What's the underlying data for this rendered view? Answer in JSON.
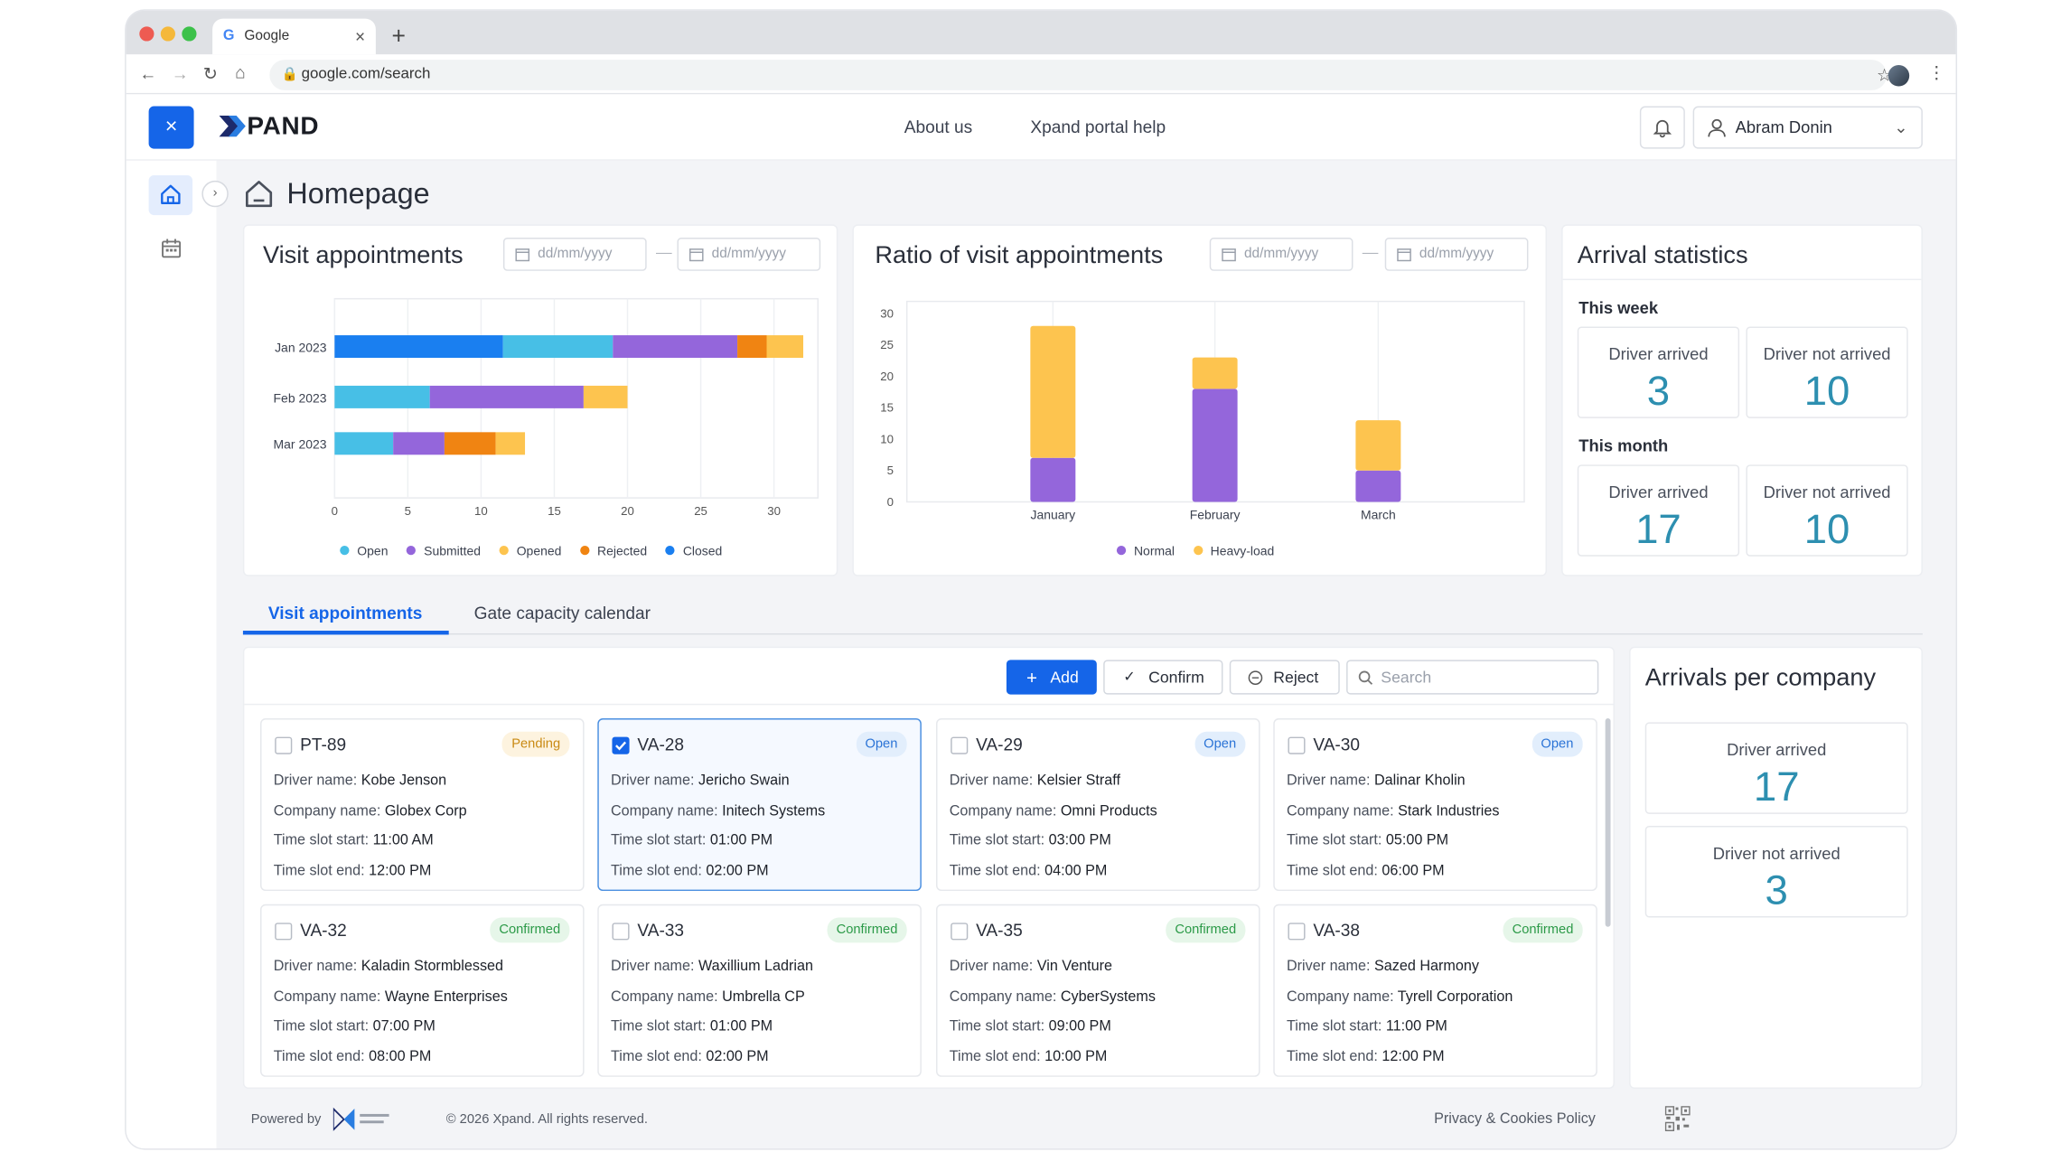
{
  "browser": {
    "tab_title": "Google",
    "tab_close": "×",
    "new_tab": "+",
    "url": "google.com/search"
  },
  "header": {
    "close_label": "×",
    "logo_text": "PAND",
    "menu": [
      "About us",
      "Xpand portal help"
    ],
    "user_name": "Abram Donin"
  },
  "page": {
    "title": "Homepage"
  },
  "visit_chart_card": {
    "title": "Visit appointments",
    "date_placeholder": "dd/mm/yyyy",
    "date_separator": "—"
  },
  "ratio_chart_card": {
    "title": "Ratio of visit appointments",
    "date_placeholder": "dd/mm/yyyy",
    "date_separator": "—"
  },
  "chart_data": [
    {
      "type": "bar",
      "orientation": "horizontal",
      "stacked": true,
      "categories": [
        "Jan 2023",
        "Feb 2023",
        "Mar 2023"
      ],
      "series": [
        {
          "name": "Closed",
          "color": "#1a7ff0",
          "values": [
            11.5,
            0,
            0
          ]
        },
        {
          "name": "Open",
          "color": "#47bfe6",
          "values": [
            7.5,
            6.5,
            4
          ]
        },
        {
          "name": "Submitted",
          "color": "#9466db",
          "values": [
            8.5,
            10.5,
            3.5
          ]
        },
        {
          "name": "Rejected",
          "color": "#f08412",
          "values": [
            2,
            0,
            3.5
          ]
        },
        {
          "name": "Opened",
          "color": "#fdc44f",
          "values": [
            2.5,
            3,
            2
          ]
        }
      ],
      "legend_order": [
        "Open",
        "Submitted",
        "Opened",
        "Rejected",
        "Closed"
      ],
      "x_ticks": [
        0,
        5,
        10,
        15,
        20,
        25,
        30
      ],
      "xlim": [
        0,
        33
      ],
      "grid": true,
      "legend": "bottom"
    },
    {
      "type": "bar",
      "stacked": true,
      "categories": [
        "January",
        "February",
        "March"
      ],
      "series": [
        {
          "name": "Normal",
          "color": "#9466db",
          "values": [
            7,
            18,
            5
          ]
        },
        {
          "name": "Heavy-load",
          "color": "#fdc44f",
          "values": [
            21,
            5,
            8
          ]
        }
      ],
      "y_ticks": [
        0,
        5,
        10,
        15,
        20,
        25,
        30
      ],
      "ylim": [
        0,
        30
      ],
      "grid": true,
      "legend": "bottom"
    }
  ],
  "arrival_stats": {
    "title": "Arrival statistics",
    "week_label": "This week",
    "month_label": "This month",
    "arrived_label": "Driver arrived",
    "not_arrived_label": "Driver not arrived",
    "week_arrived": "3",
    "week_not_arrived": "10",
    "month_arrived": "17",
    "month_not_arrived": "10"
  },
  "tabs": [
    "Visit appointments",
    "Gate capacity calendar"
  ],
  "actions": {
    "add": "Add",
    "confirm": "Confirm",
    "reject": "Reject",
    "search_placeholder": "Search"
  },
  "field_labels": {
    "driver": "Driver name:",
    "company": "Company name:",
    "start": "Time slot start:",
    "end": "Time slot end:"
  },
  "appointments": [
    {
      "id": "PT-89",
      "status": "Pending",
      "driver": "Kobe Jenson",
      "company": "Globex Corp",
      "start": "11:00 AM",
      "end": "12:00 PM"
    },
    {
      "id": "VA-28",
      "status": "Open",
      "driver": "Jericho Swain",
      "company": "Initech Systems",
      "start": "01:00 PM",
      "end": "02:00 PM"
    },
    {
      "id": "VA-29",
      "status": "Open",
      "driver": "Kelsier Straff",
      "company": "Omni Products",
      "start": "03:00 PM",
      "end": "04:00 PM"
    },
    {
      "id": "VA-30",
      "status": "Open",
      "driver": "Dalinar Kholin",
      "company": "Stark Industries",
      "start": "05:00 PM",
      "end": "06:00 PM"
    },
    {
      "id": "VA-32",
      "status": "Confirmed",
      "driver": "Kaladin Stormblessed",
      "company": "Wayne Enterprises",
      "start": "07:00 PM",
      "end": "08:00 PM"
    },
    {
      "id": "VA-33",
      "status": "Confirmed",
      "driver": "Waxillium Ladrian",
      "company": "Umbrella CP",
      "start": "01:00 PM",
      "end": "02:00 PM"
    },
    {
      "id": "VA-35",
      "status": "Confirmed",
      "driver": "Vin Venture",
      "company": "CyberSystems",
      "start": "09:00 PM",
      "end": "10:00 PM"
    },
    {
      "id": "VA-38",
      "status": "Confirmed",
      "driver": "Sazed Harmony",
      "company": "Tyrell Corporation",
      "start": "11:00 PM",
      "end": "12:00 PM"
    }
  ],
  "arrivals_per_company": {
    "title": "Arrivals per company",
    "arrived_label": "Driver arrived",
    "arrived_value": "17",
    "not_arrived_label": "Driver not arrived",
    "not_arrived_value": "3"
  },
  "footer": {
    "powered_by": "Powered by",
    "copyright": "© 2026 Xpand. All rights reserved.",
    "privacy": "Privacy & Cookies Policy"
  },
  "colors": {
    "accent": "#1565e8",
    "stat_number": "#2d8fb0"
  }
}
